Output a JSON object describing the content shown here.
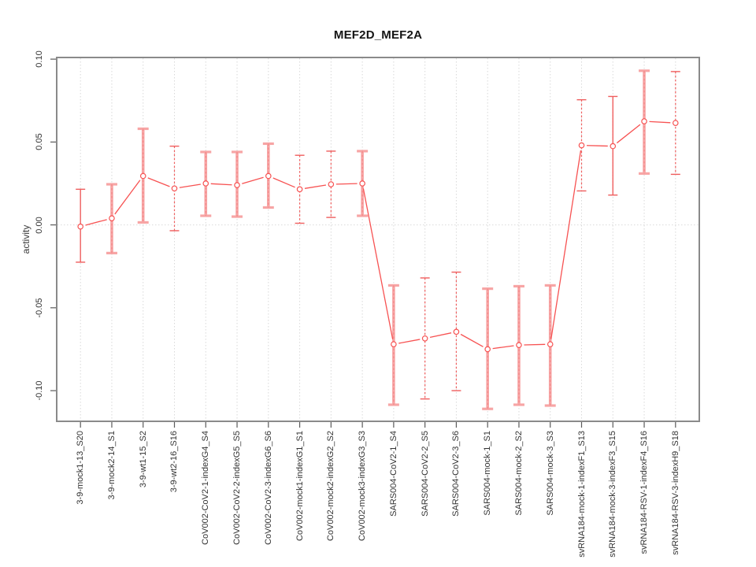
{
  "colors": {
    "series_red": "#f75252",
    "errorbar_pink": "#f7a5a5",
    "errorbar_dashed_red": "#ef5e5e",
    "gridline_gray": "#d9d9d9",
    "plot_box_gray": "#8a8a8a",
    "tick_gray": "#5a5a5a",
    "label_text": "#333333",
    "title_text": "#141414"
  },
  "chart_data": {
    "type": "line",
    "title": "MEF2D_MEF2A",
    "xlabel": "",
    "ylabel": "activity",
    "marker": "open-circle",
    "legend": "none",
    "grid": {
      "vertical_dotted_per_category": true,
      "horizontal_dotted_zero_line": true
    },
    "ylim": [
      -0.1185,
      0.101
    ],
    "yticks": [
      0.1,
      0.05,
      0.0,
      -0.05,
      -0.1
    ],
    "ytick_labels": [
      "0.10",
      "0.05",
      "0.00",
      "-0.05",
      "-0.10"
    ],
    "categories": [
      "3-9-mock1-13_S20",
      "3-9-mock2-14_S1",
      "3-9-wt1-15_S2",
      "3-9-wt2-16_S16",
      "CoV002-CoV2-1-indexG4_S4",
      "CoV002-CoV2-2-indexG5_S5",
      "CoV002-CoV2-3-indexG6_S6",
      "CoV002-mock1-indexG1_S1",
      "CoV002-mock2-indexG2_S2",
      "CoV002-mock3-indexG3_S3",
      "SARS004-CoV2-1_S4",
      "SARS004-CoV2-2_S5",
      "SARS004-CoV2-3_S6",
      "SARS004-mock-1_S1",
      "SARS004-mock-2_S2",
      "SARS004-mock-3_S3",
      "svRNA184-mock-1-indexF1_S13",
      "svRNA184-mock-3-indexF3_S15",
      "svRNA184-RSV-1-indexF4_S16",
      "svRNA184-RSV-3-indexH9_S18"
    ],
    "series": [
      {
        "name": "activity",
        "values": [
          -0.001,
          0.004,
          0.0295,
          0.022,
          0.025,
          0.024,
          0.0295,
          0.0215,
          0.0245,
          0.025,
          -0.072,
          -0.0685,
          -0.0645,
          -0.075,
          -0.0725,
          -0.072,
          0.048,
          0.0475,
          0.0625,
          0.0615
        ],
        "ci_upper": [
          0.0215,
          0.0245,
          0.058,
          0.0475,
          0.044,
          0.044,
          0.049,
          0.042,
          0.0445,
          0.0445,
          -0.0365,
          -0.032,
          -0.0285,
          -0.0385,
          -0.037,
          -0.0365,
          0.0755,
          0.0775,
          0.093,
          0.0925
        ],
        "ci_lower": [
          -0.0225,
          -0.017,
          0.0015,
          -0.0035,
          0.0055,
          0.005,
          0.0105,
          0.001,
          0.0045,
          0.0055,
          -0.1085,
          -0.105,
          -0.1,
          -0.111,
          -0.1085,
          -0.109,
          0.0205,
          0.018,
          0.031,
          0.0305
        ],
        "bar_styles": [
          "thin",
          "thick",
          "thick",
          "dashed",
          "thick",
          "thick",
          "thick",
          "dashed",
          "dashed",
          "thick",
          "thick",
          "dashed",
          "dashed",
          "thick",
          "thick",
          "thick",
          "dashed",
          "thin",
          "thick",
          "dashed"
        ]
      }
    ]
  }
}
